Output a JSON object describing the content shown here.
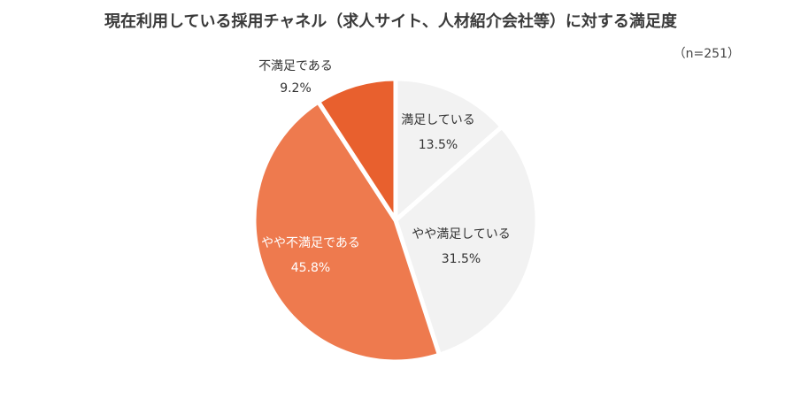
{
  "chart_data": {
    "type": "pie",
    "title": "現在利用している採用チャネル（求人サイト、人材紹介会社等）に対する満足度",
    "note": "（n=251）",
    "slices": [
      {
        "label": "満足している",
        "value": 13.5,
        "value_label": "13.5%",
        "color": "#f2f2f2",
        "label_color": "#333333"
      },
      {
        "label": "やや満足している",
        "value": 31.5,
        "value_label": "31.5%",
        "color": "#f2f2f2",
        "label_color": "#333333"
      },
      {
        "label": "やや不満足である",
        "value": 45.8,
        "value_label": "45.8%",
        "color": "#ee7a4e",
        "label_color": "#ffffff"
      },
      {
        "label": "不満足である",
        "value": 9.2,
        "value_label": "9.2%",
        "color": "#e8602e",
        "label_color": "#333333"
      }
    ],
    "start_angle_deg": 0,
    "direction": "clockwise",
    "legend": "none"
  }
}
